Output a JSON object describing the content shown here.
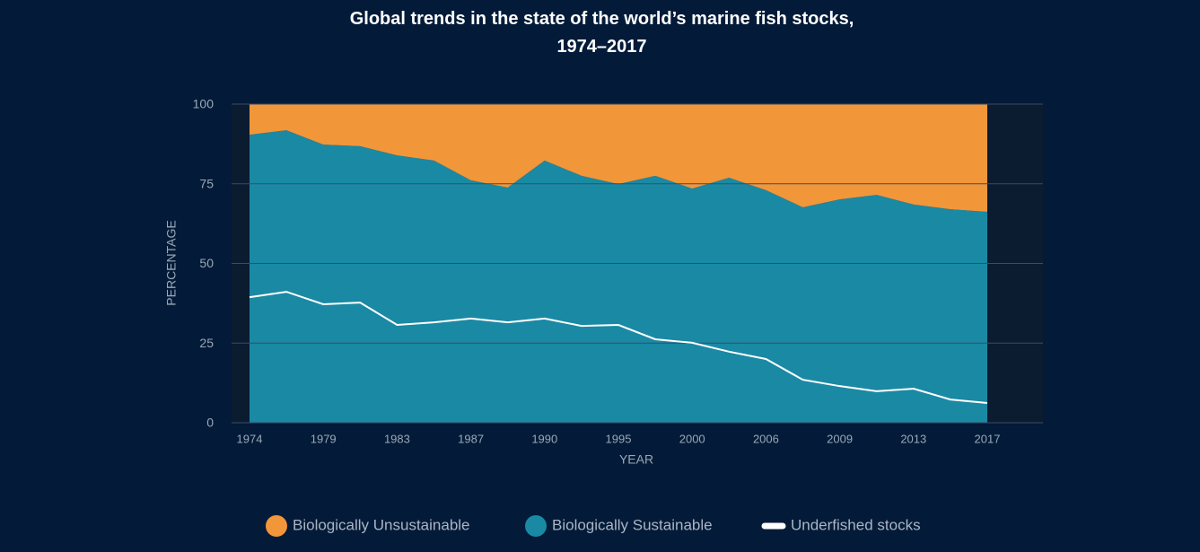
{
  "chart_data": {
    "type": "area",
    "title": "Global trends in the state of the world’s marine fish stocks, 1974–2017",
    "x_label": "YEAR",
    "y_label": "PERCENTAGE",
    "categories": [
      "1974",
      null,
      "1979",
      null,
      "1983",
      null,
      "1987",
      null,
      "1990",
      null,
      "1995",
      null,
      "2000",
      null,
      "2006",
      null,
      "2009",
      null,
      "2013",
      null,
      "2017"
    ],
    "series": [
      {
        "name": "Biologically Unsustainable",
        "type": "area",
        "stacked_on": 1,
        "color": "#f2963a",
        "values": [
          9.6,
          8.2,
          12.7,
          13.2,
          16.1,
          17.7,
          23.9,
          26.2,
          17.7,
          22.5,
          25.1,
          22.5,
          26.5,
          23.1,
          27.0,
          32.4,
          29.9,
          28.5,
          31.5,
          33.0,
          33.8
        ]
      },
      {
        "name": "Biologically Sustainable",
        "type": "area",
        "color": "#1a89a4",
        "values": [
          90.4,
          91.8,
          87.3,
          86.8,
          83.9,
          82.3,
          76.1,
          73.8,
          82.3,
          77.5,
          74.9,
          77.5,
          73.5,
          76.9,
          73.0,
          67.6,
          70.1,
          71.5,
          68.5,
          67.0,
          66.2
        ]
      },
      {
        "name": "Underfished stocks",
        "type": "line",
        "color": "#ffffff",
        "values": [
          39.4,
          41.1,
          37.2,
          37.7,
          30.7,
          31.5,
          32.7,
          31.5,
          32.7,
          30.4,
          30.7,
          26.2,
          25.1,
          22.3,
          20.0,
          13.5,
          11.5,
          9.9,
          10.7,
          7.3,
          6.2
        ]
      }
    ],
    "ylim": [
      0,
      100
    ],
    "yticks": [
      0,
      25,
      50,
      75,
      100
    ],
    "grid": true,
    "legend": "bottom"
  }
}
